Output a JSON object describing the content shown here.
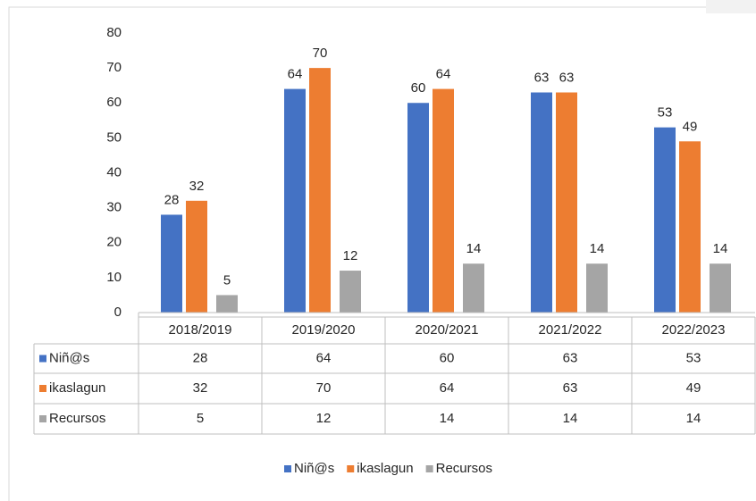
{
  "chart_data": {
    "type": "bar",
    "categories": [
      "2018/2019",
      "2019/2020",
      "2020/2021",
      "2021/2022",
      "2022/2023"
    ],
    "series": [
      {
        "name": "Niñ@s",
        "color": "#4472c4",
        "values": [
          28,
          64,
          60,
          63,
          53
        ]
      },
      {
        "name": "ikaslagun",
        "color": "#ed7d31",
        "values": [
          32,
          70,
          64,
          63,
          49
        ]
      },
      {
        "name": "Recursos",
        "color": "#a5a5a5",
        "values": [
          5,
          12,
          14,
          14,
          14
        ]
      }
    ],
    "ylim": [
      0,
      80
    ],
    "yticks": [
      0,
      10,
      20,
      30,
      40,
      50,
      60,
      70,
      80
    ],
    "grid": false,
    "data_table": true,
    "legend": "bottom"
  }
}
